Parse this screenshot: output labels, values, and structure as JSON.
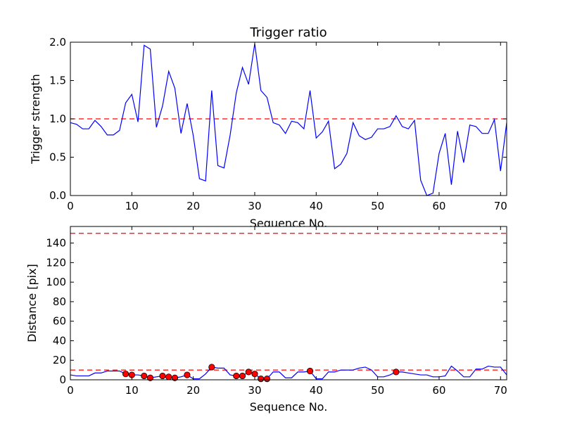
{
  "chart_data": [
    {
      "type": "line",
      "title": "Trigger ratio",
      "xlabel": "Sequence No.",
      "ylabel": "Trigger strength",
      "xlim": [
        0,
        71
      ],
      "ylim": [
        0,
        2.0
      ],
      "xticks": [
        "0",
        "10",
        "20",
        "30",
        "40",
        "50",
        "60",
        "70"
      ],
      "yticks": [
        "0.0",
        "0.5",
        "1.0",
        "1.5",
        "2.0"
      ],
      "threshold": 1.0,
      "series": [
        {
          "name": "trigger strength",
          "color": "#0000ff",
          "x": [
            0,
            1,
            2,
            3,
            4,
            5,
            6,
            7,
            8,
            9,
            10,
            11,
            12,
            13,
            14,
            15,
            16,
            17,
            18,
            19,
            20,
            21,
            22,
            23,
            24,
            25,
            26,
            27,
            28,
            29,
            30,
            31,
            32,
            33,
            34,
            35,
            36,
            37,
            38,
            39,
            40,
            41,
            42,
            43,
            44,
            45,
            46,
            47,
            48,
            49,
            50,
            51,
            52,
            53,
            54,
            55,
            56,
            57,
            58,
            59,
            60,
            61,
            62,
            63,
            64,
            65,
            66,
            67,
            68,
            69,
            70,
            71
          ],
          "values": [
            0.95,
            0.93,
            0.87,
            0.87,
            0.98,
            0.9,
            0.79,
            0.79,
            0.85,
            1.21,
            1.32,
            0.96,
            1.96,
            1.91,
            0.89,
            1.17,
            1.62,
            1.4,
            0.81,
            1.2,
            0.78,
            0.22,
            0.19,
            1.37,
            0.39,
            0.36,
            0.79,
            1.34,
            1.67,
            1.45,
            1.98,
            1.37,
            1.28,
            0.95,
            0.92,
            0.81,
            0.97,
            0.95,
            0.87,
            1.37,
            0.75,
            0.83,
            0.97,
            0.35,
            0.41,
            0.55,
            0.95,
            0.78,
            0.73,
            0.76,
            0.87,
            0.87,
            0.9,
            1.04,
            0.9,
            0.87,
            0.98,
            0.2,
            0.0,
            0.03,
            0.55,
            0.81,
            0.14,
            0.84,
            0.43,
            0.92,
            0.9,
            0.81,
            0.81,
            0.99,
            0.32,
            0.95
          ]
        }
      ],
      "threshold_color": "#ff0000"
    },
    {
      "type": "line",
      "title": "",
      "xlabel": "Sequence No.",
      "ylabel": "Distance [pix]",
      "xlim": [
        0,
        71
      ],
      "ylim": [
        0,
        157
      ],
      "xticks": [
        "0",
        "10",
        "20",
        "30",
        "40",
        "50",
        "60",
        "70"
      ],
      "yticks": [
        "0",
        "20",
        "40",
        "60",
        "80",
        "100",
        "120",
        "140"
      ],
      "thresholds": [
        10,
        150
      ],
      "series": [
        {
          "name": "distance",
          "color": "#0000ff",
          "x": [
            0,
            1,
            2,
            3,
            4,
            5,
            6,
            7,
            8,
            9,
            10,
            11,
            12,
            13,
            14,
            15,
            16,
            17,
            18,
            19,
            20,
            21,
            22,
            23,
            24,
            25,
            26,
            27,
            28,
            29,
            30,
            31,
            32,
            33,
            34,
            35,
            36,
            37,
            38,
            39,
            40,
            41,
            42,
            43,
            44,
            45,
            46,
            47,
            48,
            49,
            50,
            51,
            52,
            53,
            54,
            55,
            56,
            57,
            58,
            59,
            60,
            61,
            62,
            63,
            64,
            65,
            66,
            67,
            68,
            69,
            70,
            71
          ],
          "values": [
            5,
            4,
            4,
            4,
            7,
            7,
            9,
            9,
            9,
            6,
            5,
            5,
            4,
            2,
            3,
            4,
            3,
            2,
            3,
            5,
            1,
            1,
            6,
            13,
            12,
            12,
            5,
            4,
            4,
            8,
            6,
            1,
            1,
            8,
            8,
            2,
            2,
            8,
            8,
            9,
            1,
            1,
            8,
            8,
            10,
            10,
            10,
            12,
            13,
            10,
            3,
            3,
            5,
            8,
            8,
            7,
            6,
            5,
            5,
            3,
            3,
            4,
            14,
            9,
            3,
            3,
            11,
            11,
            14,
            13,
            13,
            5
          ]
        },
        {
          "name": "flagged points",
          "color": "#ff0000",
          "marker": "circle",
          "x": [
            9,
            10,
            12,
            13,
            15,
            16,
            17,
            19,
            23,
            27,
            28,
            29,
            30,
            31,
            32,
            39,
            53
          ],
          "values": [
            6,
            5,
            4,
            2,
            4,
            3,
            2,
            5,
            13,
            4,
            4,
            8,
            6,
            1,
            1,
            9,
            8
          ]
        }
      ],
      "threshold_color": "#ff0000"
    }
  ]
}
